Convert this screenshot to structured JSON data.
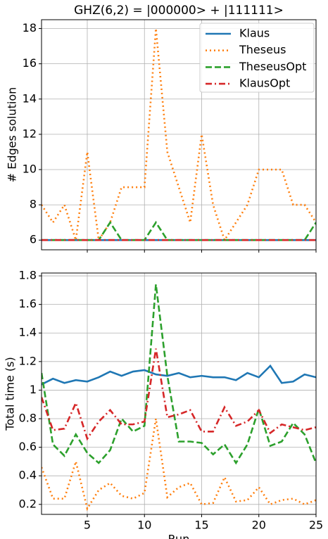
{
  "chart_data": [
    {
      "type": "line",
      "title": "GHZ(6,2) = |000000> + |111111>",
      "ylabel": "# Edges solution",
      "x": [
        1,
        2,
        3,
        4,
        5,
        6,
        7,
        8,
        9,
        10,
        11,
        12,
        13,
        14,
        15,
        16,
        17,
        18,
        19,
        20,
        21,
        22,
        23,
        24,
        25
      ],
      "series": [
        {
          "name": "Klaus",
          "color": "#1f77b4",
          "linestyle": "solid",
          "values": [
            6,
            6,
            6,
            6,
            6,
            6,
            6,
            6,
            6,
            6,
            6,
            6,
            6,
            6,
            6,
            6,
            6,
            6,
            6,
            6,
            6,
            6,
            6,
            6,
            6
          ]
        },
        {
          "name": "Theseus",
          "color": "#ff7f0e",
          "linestyle": "dotted",
          "values": [
            8,
            7,
            8,
            6,
            11,
            6,
            7,
            9,
            9,
            9,
            18,
            11,
            9,
            7,
            12,
            8,
            6,
            7,
            8,
            10,
            10,
            10,
            8,
            8,
            7
          ]
        },
        {
          "name": "TheseusOpt",
          "color": "#2ca02c",
          "linestyle": "dashed",
          "values": [
            6,
            6,
            6,
            6,
            6,
            6,
            7,
            6,
            6,
            6,
            7,
            6,
            6,
            6,
            6,
            6,
            6,
            6,
            6,
            6,
            6,
            6,
            6,
            6,
            7
          ]
        },
        {
          "name": "KlausOpt",
          "color": "#d62728",
          "linestyle": "dashdot",
          "values": [
            6,
            6,
            6,
            6,
            6,
            6,
            6,
            6,
            6,
            6,
            6,
            6,
            6,
            6,
            6,
            6,
            6,
            6,
            6,
            6,
            6,
            6,
            6,
            6,
            6
          ]
        }
      ],
      "xlim": [
        1,
        25
      ],
      "xticks": [
        5,
        10,
        15,
        20,
        25
      ],
      "xtick_labels": false,
      "ylim": [
        5.45,
        18.5
      ],
      "yticks": [
        6,
        8,
        10,
        12,
        14,
        16,
        18
      ],
      "grid": true,
      "legend": "upper right"
    },
    {
      "type": "line",
      "xlabel": "Run",
      "ylabel": "Total time (s)",
      "x": [
        1,
        2,
        3,
        4,
        5,
        6,
        7,
        8,
        9,
        10,
        11,
        12,
        13,
        14,
        15,
        16,
        17,
        18,
        19,
        20,
        21,
        22,
        23,
        24,
        25
      ],
      "series": [
        {
          "name": "Klaus",
          "color": "#1f77b4",
          "linestyle": "solid",
          "values": [
            1.04,
            1.08,
            1.05,
            1.07,
            1.06,
            1.09,
            1.13,
            1.1,
            1.13,
            1.14,
            1.11,
            1.1,
            1.12,
            1.09,
            1.1,
            1.09,
            1.09,
            1.07,
            1.12,
            1.09,
            1.17,
            1.05,
            1.06,
            1.11,
            1.09
          ]
        },
        {
          "name": "Theseus",
          "color": "#ff7f0e",
          "linestyle": "dotted",
          "values": [
            0.46,
            0.24,
            0.24,
            0.5,
            0.17,
            0.3,
            0.35,
            0.26,
            0.24,
            0.28,
            0.8,
            0.25,
            0.32,
            0.35,
            0.2,
            0.21,
            0.39,
            0.22,
            0.23,
            0.32,
            0.2,
            0.23,
            0.24,
            0.2,
            0.23
          ]
        },
        {
          "name": "TheseusOpt",
          "color": "#2ca02c",
          "linestyle": "dashed",
          "values": [
            1.12,
            0.62,
            0.54,
            0.69,
            0.56,
            0.49,
            0.58,
            0.8,
            0.71,
            0.75,
            1.74,
            1.1,
            0.64,
            0.64,
            0.63,
            0.55,
            0.62,
            0.49,
            0.62,
            0.87,
            0.61,
            0.64,
            0.77,
            0.69,
            0.49
          ]
        },
        {
          "name": "KlausOpt",
          "color": "#d62728",
          "linestyle": "dashdot",
          "values": [
            0.95,
            0.72,
            0.73,
            0.91,
            0.66,
            0.78,
            0.86,
            0.76,
            0.76,
            0.78,
            1.29,
            0.81,
            0.83,
            0.86,
            0.71,
            0.71,
            0.88,
            0.75,
            0.78,
            0.86,
            0.7,
            0.76,
            0.74,
            0.72,
            0.74
          ]
        }
      ],
      "xlim": [
        1,
        25
      ],
      "xticks": [
        5,
        10,
        15,
        20,
        25
      ],
      "ylim": [
        0.13,
        1.82
      ],
      "yticks": [
        0.2,
        0.4,
        0.6,
        0.8,
        1.0,
        1.2,
        1.4,
        1.6,
        1.8
      ],
      "grid": true
    }
  ]
}
